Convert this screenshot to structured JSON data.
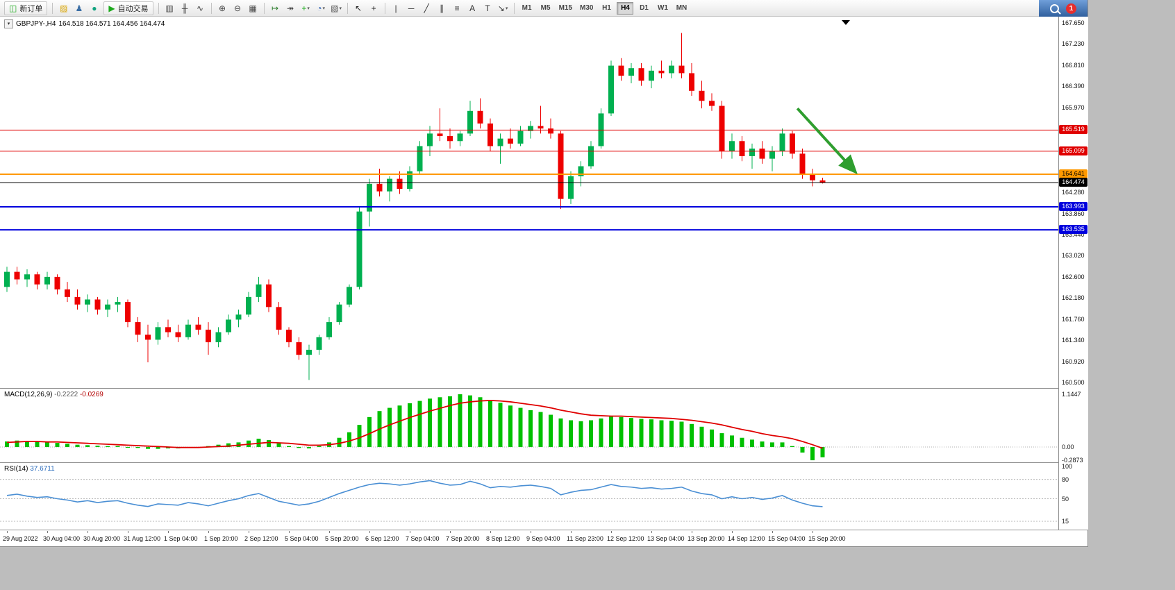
{
  "toolbar": {
    "items": [
      {
        "t": "btn",
        "name": "new-order-button",
        "icon_name": "new-order-icon",
        "glyph": "◫",
        "color": "#1daa1d",
        "label": "新订单"
      },
      {
        "t": "sep"
      },
      {
        "t": "ico",
        "name": "metaeditor-icon",
        "glyph": "▨",
        "color": "#d9a400"
      },
      {
        "t": "ico",
        "name": "open-account-icon",
        "glyph": "♟",
        "color": "#3b6ea5"
      },
      {
        "t": "ico",
        "name": "mql5-community-icon",
        "glyph": "●",
        "color": "#10a37f"
      },
      {
        "t": "btn",
        "name": "autotrading-button",
        "icon_name": "autotrading-icon",
        "glyph": "▶",
        "color": "#1daa1d",
        "label": "自动交易"
      },
      {
        "t": "sep"
      },
      {
        "t": "ico",
        "name": "bar-chart-icon",
        "glyph": "▥",
        "color": "#444444"
      },
      {
        "t": "ico",
        "name": "candlestick-chart-icon",
        "glyph": "╫",
        "color": "#444444"
      },
      {
        "t": "ico",
        "name": "line-chart-icon",
        "glyph": "∿",
        "color": "#444444"
      },
      {
        "t": "sep"
      },
      {
        "t": "ico",
        "name": "zoom-in-icon",
        "glyph": "⊕",
        "color": "#444444"
      },
      {
        "t": "ico",
        "name": "zoom-out-icon",
        "glyph": "⊖",
        "color": "#444444"
      },
      {
        "t": "ico",
        "name": "tile-windows-icon",
        "glyph": "▦",
        "color": "#444444"
      },
      {
        "t": "sep"
      },
      {
        "t": "ico",
        "name": "auto-scroll-icon",
        "glyph": "↦",
        "color": "#2a7d2a"
      },
      {
        "t": "ico",
        "name": "chart-shift-icon",
        "glyph": "↠",
        "color": "#444444"
      },
      {
        "t": "ico",
        "name": "indicators-icon",
        "glyph": "+",
        "color": "#1daa1d",
        "caret": true
      },
      {
        "t": "ico",
        "name": "periods-icon",
        "glyph": "◔",
        "color": "#2b5fb0",
        "caret": true
      },
      {
        "t": "ico",
        "name": "templates-icon",
        "glyph": "▧",
        "color": "#555555",
        "caret": true
      },
      {
        "t": "sep"
      },
      {
        "t": "ico",
        "name": "cursor-icon",
        "glyph": "↖",
        "color": "#222222"
      },
      {
        "t": "ico",
        "name": "crosshair-icon",
        "glyph": "+",
        "color": "#222222"
      },
      {
        "t": "sep"
      },
      {
        "t": "ico",
        "name": "vertical-line-icon",
        "glyph": "|",
        "color": "#333333"
      },
      {
        "t": "ico",
        "name": "horizontal-line-icon",
        "glyph": "─",
        "color": "#333333"
      },
      {
        "t": "ico",
        "name": "trendline-icon",
        "glyph": "╱",
        "color": "#333333"
      },
      {
        "t": "ico",
        "name": "equidistant-channel-icon",
        "glyph": "∥",
        "color": "#333333"
      },
      {
        "t": "ico",
        "name": "fibonacci-icon",
        "glyph": "≡",
        "color": "#333333"
      },
      {
        "t": "ico",
        "name": "text-icon",
        "glyph": "A",
        "color": "#333333"
      },
      {
        "t": "ico",
        "name": "text-label-icon",
        "glyph": "T",
        "color": "#333333"
      },
      {
        "t": "ico",
        "name": "arrows-icon",
        "glyph": "↘",
        "color": "#333333",
        "caret": true
      },
      {
        "t": "sep"
      },
      {
        "t": "tfgroup"
      }
    ],
    "timeframes": [
      "M1",
      "M5",
      "M15",
      "M30",
      "H1",
      "H4",
      "D1",
      "W1",
      "MN"
    ],
    "active_timeframe": "H4",
    "notification_count": "1"
  },
  "chart_header": {
    "symbol_period": "GBPJPY-,H4",
    "ohlc_text": "164.518 164.571 164.456 164.474"
  },
  "chart_data": {
    "type": "candlestick",
    "symbol": "GBPJPY-",
    "timeframe": "H4",
    "last": {
      "open": 164.518,
      "high": 164.571,
      "low": 164.456,
      "close": 164.474
    },
    "up_color": "#00b050",
    "down_color": "#ee0000",
    "price_axis_labels": [
      "167.650",
      "167.230",
      "166.810",
      "166.390",
      "165.970",
      "164.280",
      "163.860",
      "163.440",
      "163.020",
      "162.600",
      "162.180",
      "161.760",
      "161.340",
      "160.920",
      "160.500"
    ],
    "levels": [
      {
        "price": 165.519,
        "label": "165.519",
        "color": "#e00000",
        "width": 1,
        "text": "#ffffff"
      },
      {
        "price": 165.099,
        "label": "165.099",
        "color": "#e00000",
        "width": 1,
        "text": "#ffffff"
      },
      {
        "price": 164.641,
        "label": "164.641",
        "color": "#ff9900",
        "width": 2,
        "text": "#000000"
      },
      {
        "price": 164.474,
        "label": "164.474",
        "color": "#000000",
        "width": 1,
        "text": "#ffffff"
      },
      {
        "price": 163.993,
        "label": "163.993",
        "color": "#0000dd",
        "width": 2,
        "text": "#ffffff"
      },
      {
        "price": 163.535,
        "label": "163.535",
        "color": "#0000dd",
        "width": 2,
        "text": "#ffffff"
      }
    ],
    "annotation_arrow": {
      "from": {
        "index": 78.5,
        "price": 165.95
      },
      "to": {
        "index": 84.2,
        "price": 164.7
      },
      "color": "#2f9e2f"
    },
    "candles": [
      [
        162.4,
        162.8,
        162.3,
        162.7
      ],
      [
        162.7,
        162.8,
        162.45,
        162.55
      ],
      [
        162.55,
        162.75,
        162.4,
        162.65
      ],
      [
        162.65,
        162.7,
        162.35,
        162.45
      ],
      [
        162.45,
        162.7,
        162.35,
        162.6
      ],
      [
        162.6,
        162.65,
        162.25,
        162.35
      ],
      [
        162.35,
        162.5,
        162.1,
        162.2
      ],
      [
        162.2,
        162.35,
        161.95,
        162.05
      ],
      [
        162.05,
        162.25,
        161.9,
        162.15
      ],
      [
        162.15,
        162.2,
        161.85,
        161.95
      ],
      [
        161.95,
        162.15,
        161.8,
        162.05
      ],
      [
        162.05,
        162.2,
        161.9,
        162.1
      ],
      [
        162.1,
        162.15,
        161.6,
        161.7
      ],
      [
        161.7,
        161.8,
        161.3,
        161.45
      ],
      [
        161.45,
        161.65,
        160.9,
        161.35
      ],
      [
        161.35,
        161.7,
        161.25,
        161.6
      ],
      [
        161.6,
        161.75,
        161.4,
        161.5
      ],
      [
        161.5,
        161.65,
        161.3,
        161.4
      ],
      [
        161.4,
        161.75,
        161.35,
        161.65
      ],
      [
        161.65,
        161.8,
        161.45,
        161.55
      ],
      [
        161.55,
        161.7,
        161.05,
        161.3
      ],
      [
        161.3,
        161.6,
        161.2,
        161.5
      ],
      [
        161.5,
        161.85,
        161.45,
        161.75
      ],
      [
        161.75,
        161.95,
        161.6,
        161.85
      ],
      [
        161.85,
        162.3,
        161.8,
        162.2
      ],
      [
        162.2,
        162.6,
        162.1,
        162.45
      ],
      [
        162.45,
        162.55,
        161.9,
        162.0
      ],
      [
        162.0,
        162.1,
        161.45,
        161.55
      ],
      [
        161.55,
        161.6,
        161.2,
        161.3
      ],
      [
        161.3,
        161.4,
        160.95,
        161.05
      ],
      [
        161.05,
        161.25,
        160.55,
        161.15
      ],
      [
        161.15,
        161.45,
        161.05,
        161.4
      ],
      [
        161.4,
        161.8,
        161.35,
        161.7
      ],
      [
        161.7,
        162.1,
        161.65,
        162.05
      ],
      [
        162.05,
        162.45,
        162.0,
        162.4
      ],
      [
        162.4,
        164.0,
        162.35,
        163.9
      ],
      [
        163.9,
        164.55,
        163.6,
        164.45
      ],
      [
        164.45,
        164.75,
        164.2,
        164.3
      ],
      [
        164.3,
        164.6,
        164.1,
        164.55
      ],
      [
        164.55,
        164.7,
        164.25,
        164.35
      ],
      [
        164.35,
        164.8,
        164.3,
        164.7
      ],
      [
        164.7,
        165.3,
        164.65,
        165.2
      ],
      [
        165.2,
        165.6,
        165.0,
        165.45
      ],
      [
        165.45,
        165.95,
        165.3,
        165.4
      ],
      [
        165.4,
        165.55,
        165.15,
        165.3
      ],
      [
        165.3,
        165.5,
        165.2,
        165.45
      ],
      [
        165.45,
        166.1,
        165.4,
        165.9
      ],
      [
        165.9,
        166.15,
        165.55,
        165.65
      ],
      [
        165.65,
        165.75,
        165.1,
        165.2
      ],
      [
        165.2,
        165.45,
        164.85,
        165.35
      ],
      [
        165.35,
        165.55,
        165.15,
        165.25
      ],
      [
        165.25,
        165.6,
        165.2,
        165.5
      ],
      [
        165.5,
        165.7,
        165.35,
        165.6
      ],
      [
        165.6,
        166.0,
        165.45,
        165.55
      ],
      [
        165.55,
        165.75,
        165.35,
        165.45
      ],
      [
        165.45,
        165.5,
        163.95,
        164.15
      ],
      [
        164.15,
        164.7,
        164.05,
        164.6
      ],
      [
        164.6,
        164.9,
        164.4,
        164.8
      ],
      [
        164.8,
        165.3,
        164.75,
        165.2
      ],
      [
        165.2,
        165.95,
        165.15,
        165.85
      ],
      [
        165.85,
        166.9,
        165.8,
        166.8
      ],
      [
        166.8,
        166.95,
        166.5,
        166.6
      ],
      [
        166.6,
        166.85,
        166.45,
        166.75
      ],
      [
        166.75,
        166.85,
        166.4,
        166.5
      ],
      [
        166.5,
        166.8,
        166.35,
        166.7
      ],
      [
        166.7,
        166.9,
        166.55,
        166.65
      ],
      [
        166.65,
        166.9,
        166.55,
        166.8
      ],
      [
        166.8,
        167.45,
        166.55,
        166.65
      ],
      [
        166.65,
        166.85,
        166.2,
        166.3
      ],
      [
        166.3,
        166.5,
        165.95,
        166.1
      ],
      [
        166.1,
        166.25,
        165.9,
        166.0
      ],
      [
        166.0,
        166.1,
        164.95,
        165.1
      ],
      [
        165.1,
        165.45,
        164.95,
        165.3
      ],
      [
        165.3,
        165.4,
        164.9,
        165.0
      ],
      [
        165.0,
        165.25,
        164.75,
        165.15
      ],
      [
        165.15,
        165.3,
        164.85,
        164.95
      ],
      [
        164.95,
        165.2,
        164.7,
        165.1
      ],
      [
        165.1,
        165.55,
        165.0,
        165.45
      ],
      [
        165.45,
        165.5,
        164.95,
        165.05
      ],
      [
        165.05,
        165.15,
        164.55,
        164.65
      ],
      [
        164.65,
        164.75,
        164.4,
        164.52
      ],
      [
        164.518,
        164.571,
        164.456,
        164.474
      ]
    ],
    "macd": {
      "label": "MACD(12,26,9)",
      "main_value": "-0.2222",
      "signal_value": "-0.0269",
      "histogram_color": "#00c000",
      "signal_color": "#e00000",
      "axis_labels": [
        {
          "text": "1.1447",
          "value": 1.1447
        },
        {
          "text": "0.00",
          "value": 0
        },
        {
          "text": "-0.2873",
          "value": -0.2873
        }
      ],
      "histogram": [
        0.12,
        0.14,
        0.13,
        0.12,
        0.1,
        0.09,
        0.07,
        0.05,
        0.04,
        0.03,
        0.02,
        0.02,
        0.0,
        -0.02,
        -0.04,
        -0.04,
        -0.03,
        -0.03,
        -0.02,
        0.0,
        0.02,
        0.05,
        0.08,
        0.1,
        0.14,
        0.18,
        0.15,
        0.08,
        0.02,
        -0.02,
        -0.03,
        0.02,
        0.1,
        0.2,
        0.32,
        0.48,
        0.65,
        0.78,
        0.85,
        0.9,
        0.95,
        1.0,
        1.05,
        1.08,
        1.1,
        1.1447,
        1.12,
        1.08,
        1.02,
        0.96,
        0.9,
        0.85,
        0.8,
        0.76,
        0.7,
        0.62,
        0.58,
        0.56,
        0.58,
        0.62,
        0.66,
        0.65,
        0.63,
        0.61,
        0.6,
        0.58,
        0.57,
        0.55,
        0.5,
        0.44,
        0.38,
        0.3,
        0.25,
        0.2,
        0.16,
        0.12,
        0.1,
        0.1,
        0.02,
        -0.12,
        -0.2873,
        -0.2222
      ],
      "signal": [
        0.1,
        0.11,
        0.12,
        0.12,
        0.11,
        0.11,
        0.1,
        0.09,
        0.08,
        0.07,
        0.06,
        0.05,
        0.04,
        0.03,
        0.02,
        0.01,
        0.0,
        -0.01,
        -0.01,
        -0.01,
        0.0,
        0.01,
        0.02,
        0.04,
        0.06,
        0.08,
        0.1,
        0.09,
        0.08,
        0.06,
        0.04,
        0.04,
        0.05,
        0.08,
        0.13,
        0.2,
        0.29,
        0.39,
        0.48,
        0.56,
        0.64,
        0.71,
        0.78,
        0.84,
        0.9,
        0.95,
        0.98,
        1.0,
        1.01,
        1.0,
        0.98,
        0.95,
        0.92,
        0.89,
        0.85,
        0.8,
        0.76,
        0.72,
        0.69,
        0.68,
        0.67,
        0.67,
        0.66,
        0.65,
        0.64,
        0.63,
        0.62,
        0.6,
        0.58,
        0.55,
        0.52,
        0.48,
        0.43,
        0.38,
        0.34,
        0.29,
        0.25,
        0.22,
        0.18,
        0.12,
        0.05,
        -0.0269
      ]
    },
    "rsi": {
      "label": "RSI(14)",
      "value": "37.6711",
      "line_color": "#4a8fd4",
      "levels": [
        {
          "text": "100",
          "value": 100,
          "line": false
        },
        {
          "text": "80",
          "value": 80,
          "line": true
        },
        {
          "text": "50",
          "value": 50,
          "line": true
        },
        {
          "text": "15",
          "value": 15,
          "line": true
        }
      ],
      "values": [
        55,
        57,
        54,
        52,
        53,
        50,
        48,
        45,
        47,
        44,
        46,
        47,
        43,
        40,
        38,
        42,
        41,
        40,
        44,
        42,
        39,
        43,
        47,
        50,
        55,
        58,
        52,
        46,
        43,
        40,
        42,
        46,
        52,
        58,
        63,
        68,
        72,
        74,
        73,
        71,
        73,
        76,
        78,
        74,
        71,
        72,
        77,
        73,
        67,
        69,
        68,
        70,
        71,
        69,
        66,
        56,
        60,
        63,
        64,
        68,
        72,
        69,
        68,
        66,
        67,
        65,
        66,
        68,
        62,
        58,
        56,
        50,
        53,
        50,
        52,
        49,
        51,
        55,
        48,
        43,
        39,
        37.6711
      ]
    },
    "time_axis_labels": [
      "29 Aug 2022",
      "30 Aug 04:00",
      "30 Aug 20:00",
      "31 Aug 12:00",
      "1 Sep 04:00",
      "1 Sep 20:00",
      "2 Sep 12:00",
      "5 Sep 04:00",
      "5 Sep 20:00",
      "6 Sep 12:00",
      "7 Sep 04:00",
      "7 Sep 20:00",
      "8 Sep 12:00",
      "9 Sep 04:00",
      "11 Sep 23:00",
      "12 Sep 12:00",
      "13 Sep 04:00",
      "13 Sep 20:00",
      "14 Sep 12:00",
      "15 Sep 04:00",
      "15 Sep 20:00"
    ]
  }
}
